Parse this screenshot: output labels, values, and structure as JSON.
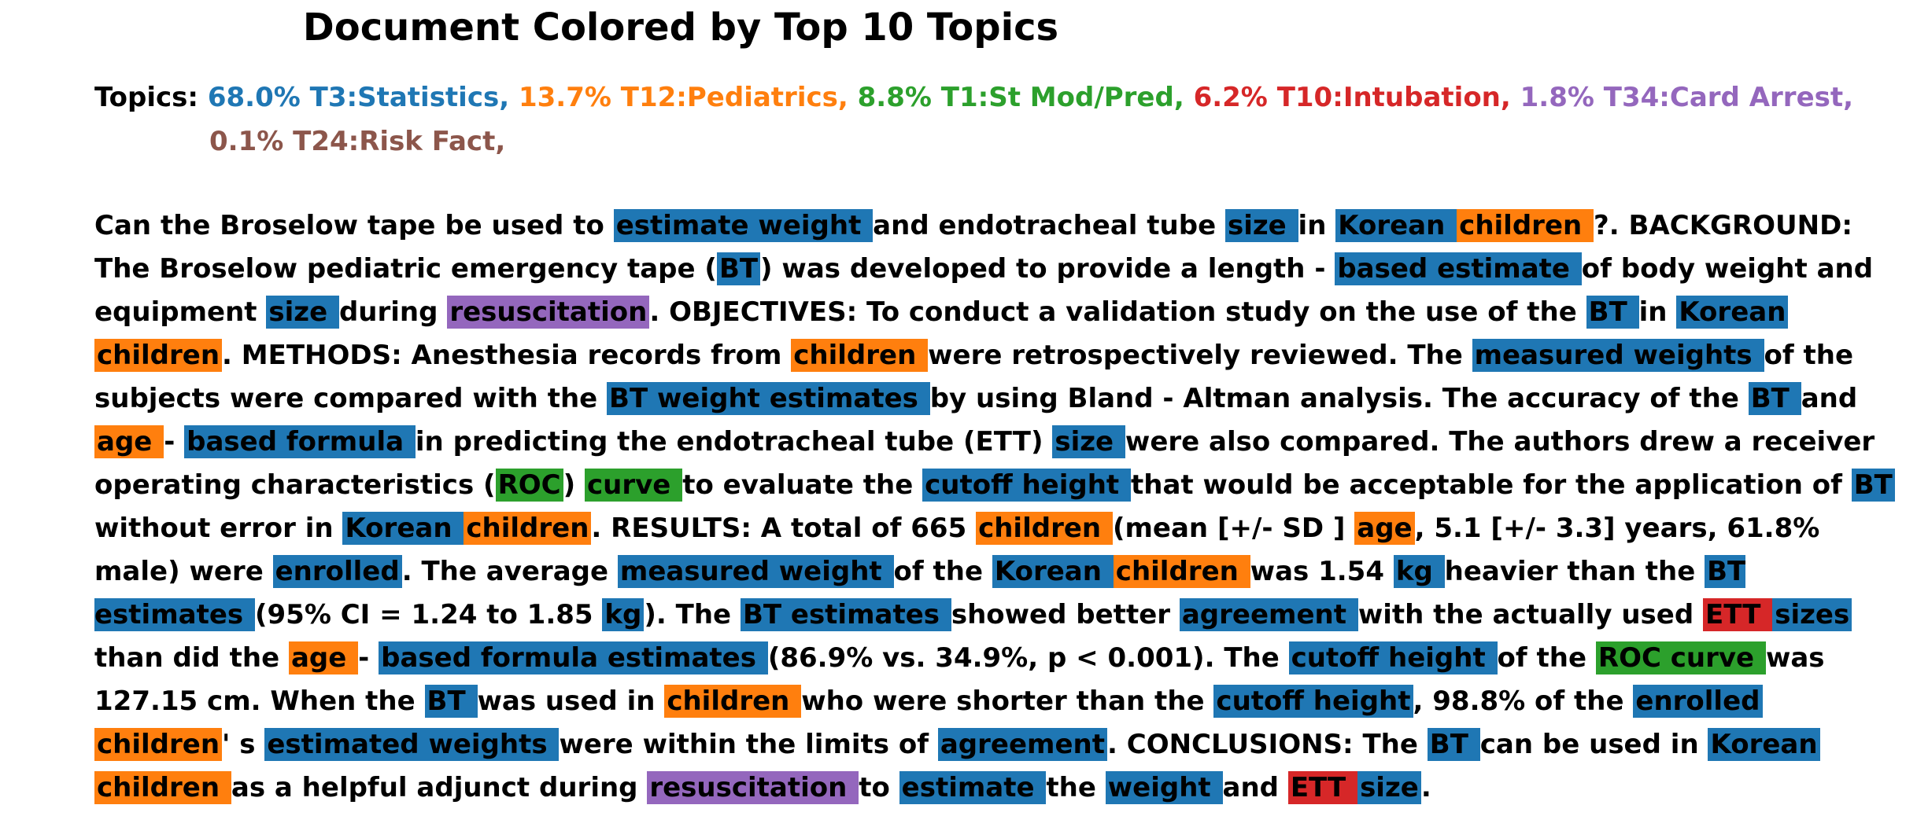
{
  "title": "Document Colored by Top 10 Topics",
  "topics_label": "Topics:",
  "topics": [
    {
      "id": "T3",
      "text": "68.0% T3:Statistics,",
      "color": "#1f77b4"
    },
    {
      "id": "T12",
      "text": "13.7% T12:Pediatrics,",
      "color": "#ff7f0e"
    },
    {
      "id": "T1",
      "text": "8.8% T1:St Mod/Pred,",
      "color": "#2ca02c"
    },
    {
      "id": "T10",
      "text": "6.2% T10:Intubation,",
      "color": "#d62728"
    },
    {
      "id": "T34",
      "text": "1.8% T34:Card Arrest,",
      "color": "#9467bd"
    },
    {
      "id": "T24",
      "text": "0.1% T24:Risk Fact,",
      "color": "#8c564b"
    }
  ],
  "body_segments": [
    {
      "text": "Can the Broselow tape be used to "
    },
    {
      "text": "estimate weight ",
      "topic": "T3"
    },
    {
      "text": "and endotracheal tube "
    },
    {
      "text": "size ",
      "topic": "T3"
    },
    {
      "text": "in "
    },
    {
      "text": "Korean ",
      "topic": "T3"
    },
    {
      "text": "children ",
      "topic": "T12"
    },
    {
      "text": "?. BACKGROUND: The Broselow pediatric emergency tape ("
    },
    {
      "text": "BT",
      "topic": "T3"
    },
    {
      "text": ") was developed to provide a length - "
    },
    {
      "text": "based estimate ",
      "topic": "T3"
    },
    {
      "text": "of body weight and equipment "
    },
    {
      "text": "size ",
      "topic": "T3"
    },
    {
      "text": "during "
    },
    {
      "text": "resuscitation",
      "topic": "T34"
    },
    {
      "text": ". OBJECTIVES: To conduct a validation study on the use of the "
    },
    {
      "text": "BT ",
      "topic": "T3"
    },
    {
      "text": "in "
    },
    {
      "text": "Korean ",
      "topic": "T3"
    },
    {
      "text": "children",
      "topic": "T12"
    },
    {
      "text": ". METHODS: Anesthesia records from "
    },
    {
      "text": "children ",
      "topic": "T12"
    },
    {
      "text": "were retrospectively reviewed. The "
    },
    {
      "text": "measured weights ",
      "topic": "T3"
    },
    {
      "text": "of the subjects were compared with the "
    },
    {
      "text": "BT weight estimates ",
      "topic": "T3"
    },
    {
      "text": "by using Bland - Altman analysis. The accuracy of the "
    },
    {
      "text": "BT ",
      "topic": "T3"
    },
    {
      "text": "and "
    },
    {
      "text": "age ",
      "topic": "T12"
    },
    {
      "text": "- "
    },
    {
      "text": "based formula ",
      "topic": "T3"
    },
    {
      "text": "in predicting the endotracheal tube (ETT) "
    },
    {
      "text": "size ",
      "topic": "T3"
    },
    {
      "text": "were also compared. The authors drew a receiver operating characteristics ("
    },
    {
      "text": "ROC",
      "topic": "T1"
    },
    {
      "text": ") "
    },
    {
      "text": "curve ",
      "topic": "T1"
    },
    {
      "text": "to evaluate the "
    },
    {
      "text": "cutoff height ",
      "topic": "T3"
    },
    {
      "text": "that would be acceptable for the application of "
    },
    {
      "text": "BT ",
      "topic": "T3"
    },
    {
      "text": "without error in "
    },
    {
      "text": "Korean ",
      "topic": "T3"
    },
    {
      "text": "children",
      "topic": "T12"
    },
    {
      "text": ". RESULTS: A total of 665 "
    },
    {
      "text": "children ",
      "topic": "T12"
    },
    {
      "text": "(mean [+/- SD ] "
    },
    {
      "text": "age",
      "topic": "T12"
    },
    {
      "text": ", 5.1 [+/- 3.3] years, 61.8% male) were "
    },
    {
      "text": "enrolled",
      "topic": "T3"
    },
    {
      "text": ". The average "
    },
    {
      "text": "measured weight ",
      "topic": "T3"
    },
    {
      "text": "of the "
    },
    {
      "text": "Korean ",
      "topic": "T3"
    },
    {
      "text": "children ",
      "topic": "T12"
    },
    {
      "text": "was 1.54 "
    },
    {
      "text": "kg ",
      "topic": "T3"
    },
    {
      "text": "heavier than the "
    },
    {
      "text": "BT estimates ",
      "topic": "T3"
    },
    {
      "text": "(95% CI = 1.24 to 1.85 "
    },
    {
      "text": "kg",
      "topic": "T3"
    },
    {
      "text": "). The "
    },
    {
      "text": "BT estimates ",
      "topic": "T3"
    },
    {
      "text": "showed better "
    },
    {
      "text": "agreement ",
      "topic": "T3"
    },
    {
      "text": "with the actually used "
    },
    {
      "text": "ETT ",
      "topic": "T10"
    },
    {
      "text": "sizes ",
      "topic": "T3"
    },
    {
      "text": "than did the "
    },
    {
      "text": "age ",
      "topic": "T12"
    },
    {
      "text": "- "
    },
    {
      "text": "based formula estimates ",
      "topic": "T3"
    },
    {
      "text": "(86.9% vs. 34.9%, p < 0.001). The "
    },
    {
      "text": "cutoff height ",
      "topic": "T3"
    },
    {
      "text": "of the "
    },
    {
      "text": "ROC curve ",
      "topic": "T1"
    },
    {
      "text": "was 127.15 cm. When the "
    },
    {
      "text": "BT ",
      "topic": "T3"
    },
    {
      "text": "was used in "
    },
    {
      "text": "children ",
      "topic": "T12"
    },
    {
      "text": "who were shorter than the "
    },
    {
      "text": "cutoff height",
      "topic": "T3"
    },
    {
      "text": ", 98.8% of the "
    },
    {
      "text": "enrolled ",
      "topic": "T3"
    },
    {
      "text": "children",
      "topic": "T12"
    },
    {
      "text": "' s "
    },
    {
      "text": "estimated weights ",
      "topic": "T3"
    },
    {
      "text": "were within the limits of "
    },
    {
      "text": "agreement",
      "topic": "T3"
    },
    {
      "text": ". CONCLUSIONS: The "
    },
    {
      "text": "BT ",
      "topic": "T3"
    },
    {
      "text": "can be used in "
    },
    {
      "text": "Korean ",
      "topic": "T3"
    },
    {
      "text": "children ",
      "topic": "T12"
    },
    {
      "text": "as a helpful adjunct during "
    },
    {
      "text": "resuscitation ",
      "topic": "T34"
    },
    {
      "text": "to "
    },
    {
      "text": "estimate ",
      "topic": "T3"
    },
    {
      "text": "the "
    },
    {
      "text": "weight ",
      "topic": "T3"
    },
    {
      "text": "and "
    },
    {
      "text": "ETT ",
      "topic": "T10"
    },
    {
      "text": "size",
      "topic": "T3"
    },
    {
      "text": "."
    }
  ]
}
